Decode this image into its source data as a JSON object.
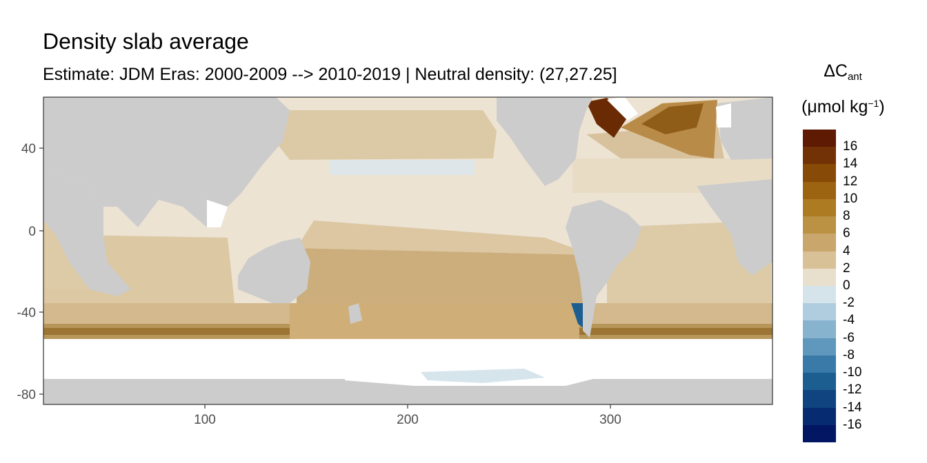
{
  "title": "Density slab average",
  "subtitle": "Estimate: JDM Eras: 2000-2009 --> 2010-2019 | Neutral density: (27,27.25]",
  "map": {
    "x_ticks": [
      "100",
      "200",
      "300"
    ],
    "y_ticks": [
      "40",
      "0",
      "-40",
      "-80"
    ],
    "x_range": [
      20,
      380
    ],
    "y_range": [
      -85,
      65
    ],
    "land_color": "#cccccc",
    "no_data_color": "#ffffff"
  },
  "legend": {
    "title_symbol": "ΔC",
    "title_subscript": "ant",
    "unit_prefix": "(μmol kg",
    "unit_superscript": "−1",
    "unit_suffix": ")",
    "labels": [
      "16",
      "14",
      "12",
      "10",
      "8",
      "6",
      "4",
      "2",
      "0",
      "-2",
      "-4",
      "-6",
      "-8",
      "-10",
      "-12",
      "-14",
      "-16"
    ],
    "colors": [
      "#5e1a03",
      "#733205",
      "#884a07",
      "#9c6310",
      "#ad7b22",
      "#bb9144",
      "#c8a66c",
      "#d9c197",
      "#e8dfcd",
      "#d5e3ea",
      "#afcddf",
      "#87b3cf",
      "#5f97bd",
      "#3a7aa8",
      "#1d5e91",
      "#0f4480",
      "#072b70",
      "#031663"
    ]
  }
}
